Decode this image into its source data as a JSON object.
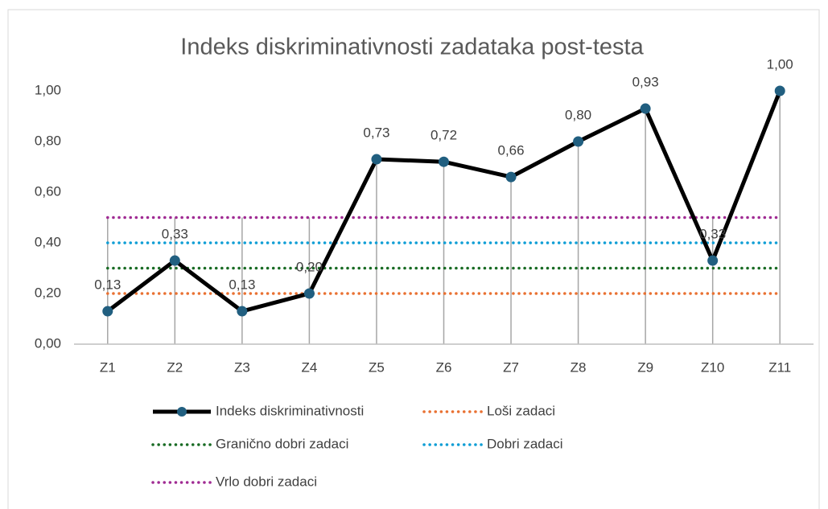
{
  "chart_data": {
    "type": "line",
    "title": "Indeks diskriminativnosti zadataka post-testa",
    "categories": [
      "Z1",
      "Z2",
      "Z3",
      "Z4",
      "Z5",
      "Z6",
      "Z7",
      "Z8",
      "Z9",
      "Z10",
      "Z11"
    ],
    "series": [
      {
        "name": "Indeks diskriminativnosti",
        "color": "#000000",
        "marker_color": "#215f80",
        "line_style": "solid",
        "marker": true,
        "values": [
          0.13,
          0.33,
          0.13,
          0.2,
          0.73,
          0.72,
          0.66,
          0.8,
          0.93,
          0.33,
          1.0
        ],
        "value_labels": [
          "0,13",
          "0,33",
          "0,13",
          "0,20",
          "0,73",
          "0,72",
          "0,66",
          "0,80",
          "0,93",
          "0,33",
          "1,00"
        ]
      },
      {
        "name": "Loši zadaci",
        "color": "#e97132",
        "line_style": "dotted",
        "marker": false,
        "values": [
          0.2,
          0.2,
          0.2,
          0.2,
          0.2,
          0.2,
          0.2,
          0.2,
          0.2,
          0.2,
          0.2
        ]
      },
      {
        "name": "Granično dobri zadaci",
        "color": "#196b24",
        "line_style": "dotted",
        "marker": false,
        "values": [
          0.3,
          0.3,
          0.3,
          0.3,
          0.3,
          0.3,
          0.3,
          0.3,
          0.3,
          0.3,
          0.3
        ]
      },
      {
        "name": "Dobri zadaci",
        "color": "#0f9ed5",
        "line_style": "dotted",
        "marker": false,
        "values": [
          0.4,
          0.4,
          0.4,
          0.4,
          0.4,
          0.4,
          0.4,
          0.4,
          0.4,
          0.4,
          0.4
        ]
      },
      {
        "name": "Vrlo dobri zadaci",
        "color": "#a02b93",
        "line_style": "dotted",
        "marker": false,
        "values": [
          0.5,
          0.5,
          0.5,
          0.5,
          0.5,
          0.5,
          0.5,
          0.5,
          0.5,
          0.5,
          0.5
        ]
      }
    ],
    "ylim": [
      0,
      1
    ],
    "yticks": [
      {
        "value": 0,
        "label": "0,00"
      },
      {
        "value": 0.2,
        "label": "0,20"
      },
      {
        "value": 0.4,
        "label": "0,40"
      },
      {
        "value": 0.6,
        "label": "0,60"
      },
      {
        "value": 0.8,
        "label": "0,80"
      },
      {
        "value": 1,
        "label": "1,00"
      }
    ],
    "drop_lines": true,
    "legend": "bottom"
  }
}
